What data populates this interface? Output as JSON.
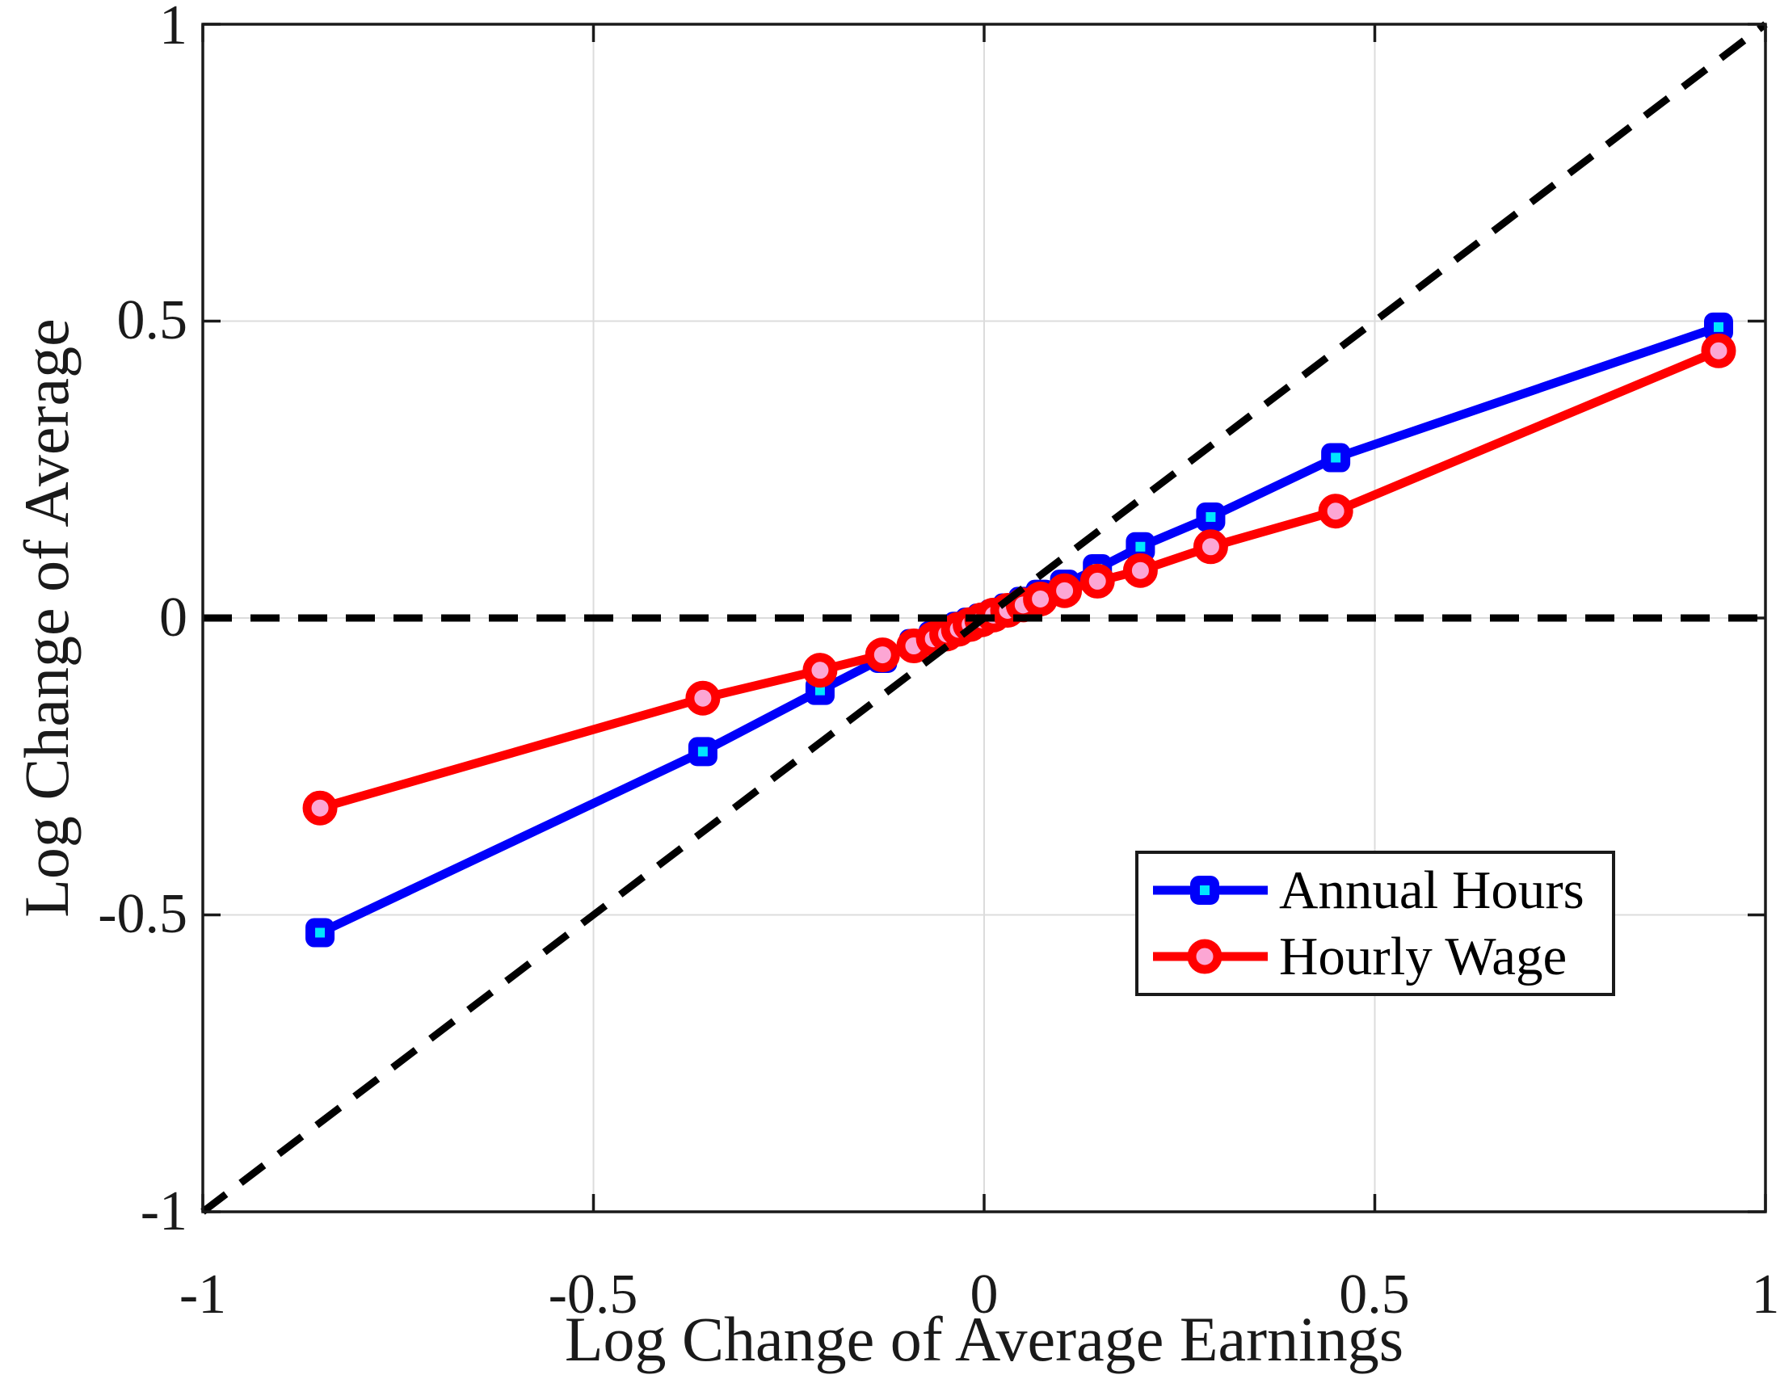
{
  "chart_data": {
    "type": "line",
    "title": "",
    "xlabel": "Log Change of Average Earnings",
    "ylabel": "Log Change of Average",
    "xlim": [
      -1,
      1
    ],
    "ylim": [
      -1,
      1
    ],
    "grid": "on",
    "grid_color": "#dcdcdc",
    "axis_color": "#1a1a1a",
    "background": "#ffffff",
    "legend_position": "lower-right-inside",
    "xticks": [
      -1,
      -0.5,
      0,
      0.5,
      1
    ],
    "yticks": [
      -1,
      -0.5,
      0,
      0.5,
      1
    ],
    "xtick_labels": [
      "-1",
      "-0.5",
      "0",
      "0.5",
      "1"
    ],
    "ytick_labels": [
      "-1",
      "-0.5",
      "0",
      "0.5",
      "1"
    ],
    "x": [
      -0.85,
      -0.36,
      -0.21,
      -0.13,
      -0.09,
      -0.065,
      -0.048,
      -0.033,
      -0.018,
      -0.003,
      0.012,
      0.03,
      0.05,
      0.072,
      0.103,
      0.145,
      0.2,
      0.29,
      0.45,
      0.94
    ],
    "series": [
      {
        "name": "Annual Hours",
        "color": "#0000fa",
        "marker": "square",
        "marker_fill": "#00e6ff",
        "values": [
          -0.53,
          -0.225,
          -0.122,
          -0.068,
          -0.043,
          -0.03,
          -0.021,
          -0.014,
          -0.007,
          0.0,
          0.007,
          0.017,
          0.028,
          0.04,
          0.057,
          0.083,
          0.12,
          0.17,
          0.27,
          0.49
        ]
      },
      {
        "name": "Hourly Wage",
        "color": "#ff0000",
        "marker": "circle",
        "marker_fill": "#fca6d4",
        "values": [
          -0.32,
          -0.135,
          -0.088,
          -0.062,
          -0.047,
          -0.035,
          -0.027,
          -0.019,
          -0.011,
          -0.003,
          0.005,
          0.013,
          0.022,
          0.032,
          0.046,
          0.062,
          0.08,
          0.12,
          0.18,
          0.45
        ]
      }
    ],
    "reference_lines": [
      {
        "name": "45-degree-line",
        "type": "diagonal",
        "from": [
          -1,
          -1
        ],
        "to": [
          1,
          1
        ],
        "style": "dashed",
        "color": "#000000"
      },
      {
        "name": "zero-line",
        "type": "horizontal",
        "y": 0,
        "style": "dashed",
        "color": "#000000"
      }
    ]
  },
  "legend": {
    "entries": [
      {
        "label": "Annual Hours"
      },
      {
        "label": "Hourly Wage"
      }
    ]
  }
}
